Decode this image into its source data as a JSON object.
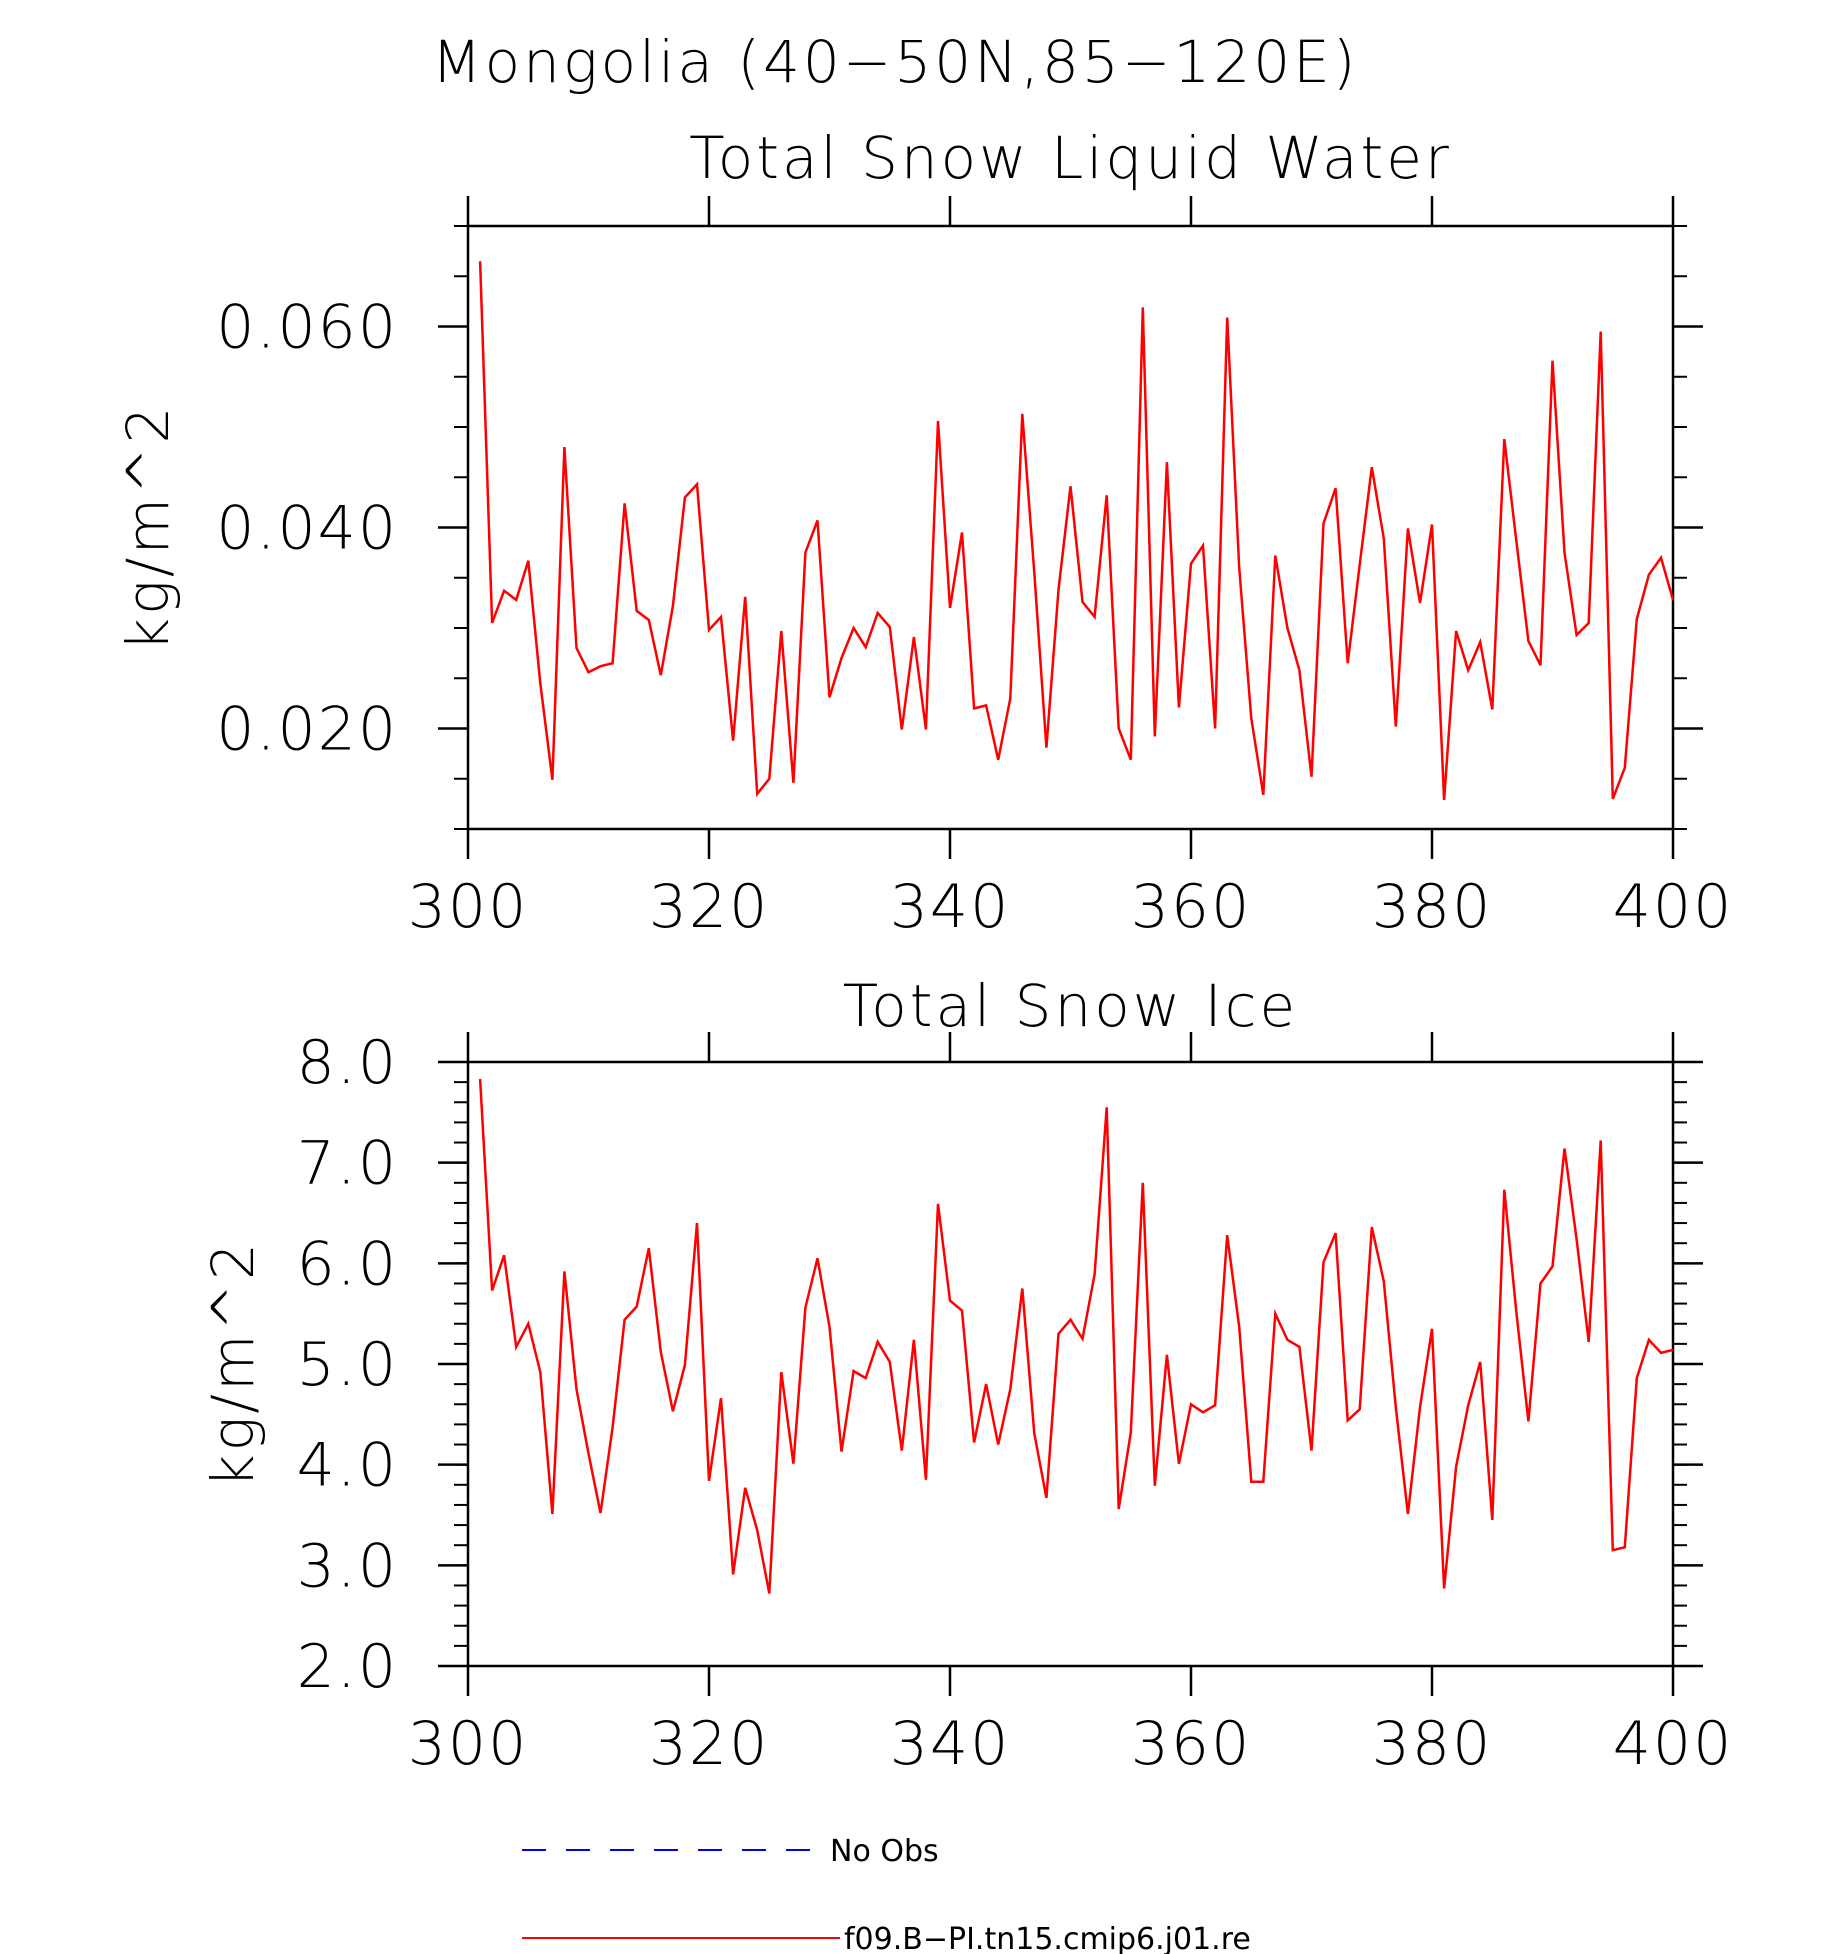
{
  "main_title": "Mongolia (40−50N,85−120E)",
  "chart_data": [
    {
      "type": "line",
      "title": "Total Snow Liquid Water",
      "ylabel": "kg/m^2",
      "xlabel": "",
      "xlim": [
        300,
        400
      ],
      "ylim": [
        0.01,
        0.07
      ],
      "xticks": [
        300,
        320,
        340,
        360,
        380,
        400
      ],
      "xtick_labels": [
        "300",
        "320",
        "340",
        "360",
        "380",
        "400"
      ],
      "yticks": [
        0.02,
        0.04,
        0.06
      ],
      "ytick_labels": [
        "0.020",
        "0.040",
        "0.060"
      ],
      "yminor_step": 0.005,
      "series": [
        {
          "name": "f09.B−PI.tn15.cmip6.j01.re",
          "color": "#ff0000",
          "x": [
            301,
            302,
            303,
            304,
            305,
            306,
            307,
            308,
            309,
            310,
            311,
            312,
            313,
            314,
            315,
            316,
            317,
            318,
            319,
            320,
            321,
            322,
            323,
            324,
            325,
            326,
            327,
            328,
            329,
            330,
            331,
            332,
            333,
            334,
            335,
            336,
            337,
            338,
            339,
            340,
            341,
            342,
            343,
            344,
            345,
            346,
            347,
            348,
            349,
            350,
            351,
            352,
            353,
            354,
            355,
            356,
            357,
            358,
            359,
            360,
            361,
            362,
            363,
            364,
            365,
            366,
            367,
            368,
            369,
            370,
            371,
            372,
            373,
            374,
            375,
            376,
            377,
            378,
            379,
            380,
            381,
            382,
            383,
            384,
            385,
            386,
            387,
            388,
            389,
            390,
            391,
            392,
            393,
            394,
            395,
            396,
            397,
            398,
            399,
            400
          ],
          "values": [
            0.0665,
            0.0305,
            0.0337,
            0.0328,
            0.0367,
            0.0245,
            0.0149,
            0.048,
            0.028,
            0.0256,
            0.0262,
            0.0265,
            0.0424,
            0.0317,
            0.0308,
            0.0253,
            0.0322,
            0.043,
            0.0443,
            0.0298,
            0.0311,
            0.0188,
            0.0331,
            0.0135,
            0.015,
            0.0297,
            0.0146,
            0.0375,
            0.0407,
            0.0231,
            0.027,
            0.03,
            0.0281,
            0.0315,
            0.0301,
            0.0199,
            0.0291,
            0.0199,
            0.0506,
            0.032,
            0.0395,
            0.022,
            0.0223,
            0.0169,
            0.023,
            0.0513,
            0.0355,
            0.0181,
            0.0338,
            0.0441,
            0.0326,
            0.0311,
            0.0432,
            0.02,
            0.0169,
            0.0619,
            0.0192,
            0.0465,
            0.0221,
            0.0364,
            0.0382,
            0.02,
            0.0609,
            0.036,
            0.021,
            0.0134,
            0.0372,
            0.03,
            0.0258,
            0.0152,
            0.0404,
            0.0439,
            0.0265,
            0.0363,
            0.046,
            0.0389,
            0.0202,
            0.0399,
            0.0325,
            0.0403,
            0.0129,
            0.0297,
            0.0258,
            0.0286,
            0.0219,
            0.0488,
            0.0387,
            0.0287,
            0.0263,
            0.0566,
            0.0375,
            0.0293,
            0.0305,
            0.0595,
            0.013,
            0.0161,
            0.0309,
            0.0353,
            0.037,
            0.0328
          ]
        }
      ]
    },
    {
      "type": "line",
      "title": "Total Snow Ice",
      "ylabel": "kg/m^2",
      "xlabel": "",
      "xlim": [
        300,
        400
      ],
      "ylim": [
        2.0,
        8.0
      ],
      "xticks": [
        300,
        320,
        340,
        360,
        380,
        400
      ],
      "xtick_labels": [
        "300",
        "320",
        "340",
        "360",
        "380",
        "400"
      ],
      "yticks": [
        2.0,
        3.0,
        4.0,
        5.0,
        6.0,
        7.0,
        8.0
      ],
      "ytick_labels": [
        "2.0",
        "3.0",
        "4.0",
        "5.0",
        "6.0",
        "7.0",
        "8.0"
      ],
      "yminor_step": 0.2,
      "series": [
        {
          "name": "f09.B−PI.tn15.cmip6.j01.re",
          "color": "#ff0000",
          "x": [
            301,
            302,
            303,
            304,
            305,
            306,
            307,
            308,
            309,
            310,
            311,
            312,
            313,
            314,
            315,
            316,
            317,
            318,
            319,
            320,
            321,
            322,
            323,
            324,
            325,
            326,
            327,
            328,
            329,
            330,
            331,
            332,
            333,
            334,
            335,
            336,
            337,
            338,
            339,
            340,
            341,
            342,
            343,
            344,
            345,
            346,
            347,
            348,
            349,
            350,
            351,
            352,
            353,
            354,
            355,
            356,
            357,
            358,
            359,
            360,
            361,
            362,
            363,
            364,
            365,
            366,
            367,
            368,
            369,
            370,
            371,
            372,
            373,
            374,
            375,
            376,
            377,
            378,
            379,
            380,
            381,
            382,
            383,
            384,
            385,
            386,
            387,
            388,
            389,
            390,
            391,
            392,
            393,
            394,
            395,
            396,
            397,
            398,
            399,
            400
          ],
          "values": [
            7.83,
            5.73,
            6.08,
            5.17,
            5.4,
            4.92,
            3.51,
            5.92,
            4.75,
            4.11,
            3.52,
            4.37,
            5.44,
            5.57,
            6.15,
            5.12,
            4.53,
            4.99,
            6.4,
            3.84,
            4.66,
            2.91,
            3.77,
            3.35,
            2.72,
            4.92,
            4.01,
            5.56,
            6.05,
            5.37,
            4.13,
            4.93,
            4.86,
            5.22,
            5.02,
            4.14,
            5.24,
            3.85,
            6.59,
            5.63,
            5.53,
            4.22,
            4.8,
            4.2,
            4.75,
            5.75,
            4.31,
            3.67,
            5.3,
            5.44,
            5.25,
            5.89,
            7.55,
            3.56,
            4.32,
            6.8,
            3.79,
            5.09,
            4.01,
            4.6,
            4.52,
            4.59,
            6.28,
            5.37,
            3.83,
            3.83,
            5.5,
            5.24,
            5.17,
            4.14,
            6.01,
            6.3,
            4.44,
            4.55,
            6.36,
            5.82,
            4.57,
            3.51,
            4.57,
            5.35,
            2.77,
            3.98,
            4.59,
            5.02,
            3.45,
            6.73,
            5.52,
            4.43,
            5.8,
            5.97,
            7.14,
            6.24,
            5.22,
            7.22,
            3.15,
            3.18,
            4.86,
            5.24,
            5.11,
            5.14
          ]
        }
      ]
    }
  ],
  "legend": [
    {
      "label": "No Obs",
      "color": "#0000ff",
      "style": "dashed"
    },
    {
      "label": "f09.B−PI.tn15.cmip6.j01.re",
      "color": "#ff0000",
      "style": "solid"
    }
  ]
}
